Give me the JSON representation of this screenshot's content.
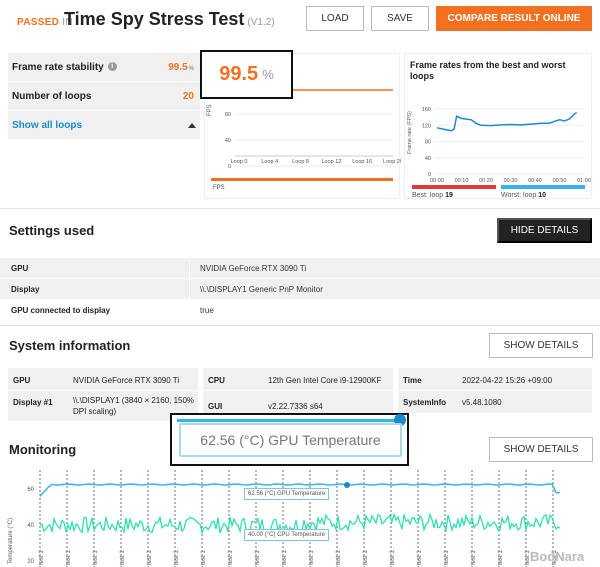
{
  "header": {
    "passed": "PASSED",
    "in": "IN",
    "title": "Time Spy Stress Test",
    "version": "(V1.2)",
    "load": "LOAD",
    "save": "SAVE",
    "compare": "COMPARE RESULT ONLINE"
  },
  "summary": {
    "stability_label": "Frame rate stability",
    "stability_value": "99.5",
    "stability_unit": "%",
    "loops_label": "Number of loops",
    "loops_value": "20",
    "show_all": "Show all loops"
  },
  "stability_popup": {
    "value": "99.5",
    "unit": "%"
  },
  "loop_chart": {
    "ylabel": "FPS",
    "yticks": [
      "80",
      "40",
      "0"
    ],
    "xticks": [
      "Loop 0",
      "Loop 4",
      "Loop 8",
      "Loop 12",
      "Loop 16",
      "Loop 20"
    ],
    "legend": "FPS",
    "color": "#f37021"
  },
  "best_worst": {
    "title": "Frame rates from the best and worst loops",
    "ylabel": "Frame rate (FPS)",
    "yticks": [
      "160",
      "120",
      "80",
      "40",
      "0"
    ],
    "xticks": [
      "00:00",
      "00:10",
      "00:20",
      "00:30",
      "00:40",
      "00:50",
      "01:00"
    ],
    "best_label": "Best: loop",
    "best_value": "19",
    "worst_label": "Worst: loop",
    "worst_value": "10",
    "best_color": "#e03a3a",
    "worst_color": "#39b1ec"
  },
  "settings": {
    "title": "Settings used",
    "hide_details": "HIDE DETAILS",
    "rows": [
      {
        "k": "GPU",
        "v": "NVIDIA GeForce RTX 3090 Ti"
      },
      {
        "k": "Display",
        "v": "\\\\.\\DISPLAY1 Generic PnP Monitor"
      },
      {
        "k": "GPU connected to display",
        "v": "true"
      }
    ]
  },
  "system": {
    "title": "System information",
    "show_details": "SHOW DETAILS",
    "gpu_k": "GPU",
    "gpu_v": "NVIDIA GeForce RTX 3090 Ti",
    "display_k": "Display #1",
    "display_v1": "\\\\.\\DISPLAY1 (3840 × 2160, 150%",
    "display_v2": "DPI scaling)",
    "cpu_k": "CPU",
    "cpu_v": "12th Gen Intel Core i9-12900KF",
    "gui_k": "GUI",
    "gui_v": "v2.22.7336 s64",
    "time_k": "Time",
    "time_v": "2022-04-22 15:26 +09:00",
    "sysinfo_k": "SystemInfo",
    "sysinfo_v": "v5.48.1080"
  },
  "gpu_popup": {
    "text": "62.56 (°C) GPU Temperature"
  },
  "monitoring": {
    "title": "Monitoring",
    "show_details": "SHOW DETAILS",
    "ylabel": "Temperature (°C)",
    "yticks": [
      "60",
      "40",
      "20"
    ],
    "gpu_tag": "62.56 (°C) GPU Temperature",
    "cpu_tag": "40.00 (°C) CPU Temperature",
    "loop_label": "test 1",
    "gpu_color": "#39b1ec",
    "cpu_color": "#2ee0b0"
  },
  "watermark": "BodNara"
}
